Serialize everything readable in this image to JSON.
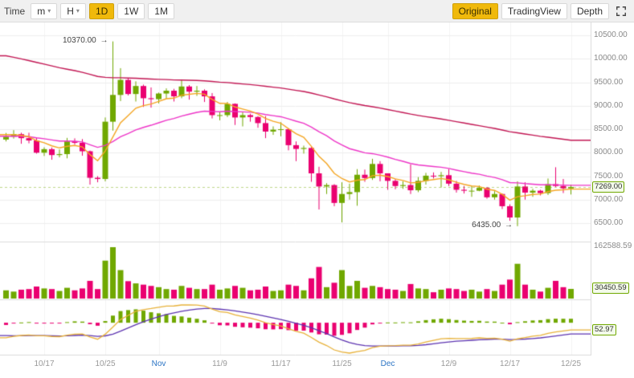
{
  "toolbar": {
    "time_label": "Time",
    "dropdowns": [
      {
        "label": "m"
      },
      {
        "label": "H"
      }
    ],
    "intervals": [
      {
        "label": "1D",
        "active": true
      },
      {
        "label": "1W",
        "active": false
      },
      {
        "label": "1M",
        "active": false
      }
    ],
    "modes": [
      {
        "label": "Original",
        "active": true
      },
      {
        "label": "TradingView",
        "active": false
      },
      {
        "label": "Depth",
        "active": false
      }
    ]
  },
  "colors": {
    "up": "#70a800",
    "down": "#ea0070",
    "ma_fast": "#f5a623",
    "ma_mid": "#ee36c8",
    "ma_slow": "#c21653",
    "macd_dif": "#e8b23a",
    "macd_dea": "#5e35b1",
    "accent": "#f0b90b",
    "month_label": "#2b74c4",
    "badge_border": "#70a800",
    "grid": "#eeeeee"
  },
  "chart_data": {
    "type": "candlestick",
    "panes": [
      "price",
      "volume",
      "macd"
    ],
    "price_axis_ticks": [
      {
        "label": "10500.00",
        "value": 10500
      },
      {
        "label": "10000.00",
        "value": 10000
      },
      {
        "label": "9500.00",
        "value": 9500
      },
      {
        "label": "9000.00",
        "value": 9000
      },
      {
        "label": "8500.00",
        "value": 8500
      },
      {
        "label": "8000.00",
        "value": 8000
      },
      {
        "label": "7500.00",
        "value": 7500
      },
      {
        "label": "7000.00",
        "value": 7000
      },
      {
        "label": "6500.00",
        "value": 6500
      }
    ],
    "x_tick_labels": [
      {
        "label": "10/17",
        "index": 5,
        "highlight": false
      },
      {
        "label": "10/25",
        "index": 13,
        "highlight": false
      },
      {
        "label": "Nov",
        "index": 20,
        "highlight": true
      },
      {
        "label": "11/9",
        "index": 28,
        "highlight": false
      },
      {
        "label": "11/17",
        "index": 36,
        "highlight": false
      },
      {
        "label": "11/25",
        "index": 44,
        "highlight": false
      },
      {
        "label": "Dec",
        "index": 50,
        "highlight": true
      },
      {
        "label": "12/9",
        "index": 58,
        "highlight": false
      },
      {
        "label": "12/17",
        "index": 66,
        "highlight": false
      },
      {
        "label": "12/25",
        "index": 74,
        "highlight": false
      }
    ],
    "annotations": [
      {
        "text": "10370.00",
        "price": 10370,
        "candle_index": 14
      },
      {
        "text": "6435.00",
        "price": 6435,
        "candle_index": 67
      }
    ],
    "badges": {
      "last_price": "7269.00",
      "volume_scale_max": "162588.59",
      "last_volume": "30450.59",
      "macd_value": "52.97"
    },
    "moving_averages": [
      {
        "period": 99,
        "seed": 10100,
        "color_key": "ma_slow"
      },
      {
        "period": 25,
        "seed": 8350,
        "color_key": "ma_mid"
      },
      {
        "period": 7,
        "seed": 8400,
        "color_key": "ma_fast"
      }
    ],
    "macd": {
      "fast": 12,
      "slow": 26,
      "signal": 9,
      "ema_fast_seed": 8320,
      "ema_slow_seed": 8560,
      "signal_seed": -180
    },
    "candles": [
      [
        8280,
        8420,
        8240,
        8340,
        26000
      ],
      [
        8340,
        8480,
        8300,
        8395,
        22000
      ],
      [
        8395,
        8425,
        8190,
        8310,
        28000
      ],
      [
        8310,
        8425,
        8200,
        8260,
        30000
      ],
      [
        8260,
        8320,
        7980,
        8000,
        38000
      ],
      [
        8000,
        8115,
        7930,
        8075,
        32000
      ],
      [
        8075,
        8110,
        7850,
        7950,
        30000
      ],
      [
        7950,
        8070,
        7900,
        7970,
        24000
      ],
      [
        7970,
        8315,
        7880,
        8240,
        34000
      ],
      [
        8240,
        8305,
        8170,
        8210,
        26000
      ],
      [
        8210,
        8290,
        7935,
        8030,
        32000
      ],
      [
        8030,
        8045,
        7320,
        7465,
        56000
      ],
      [
        7465,
        7500,
        7370,
        7440,
        30000
      ],
      [
        7440,
        8750,
        7390,
        8660,
        120000
      ],
      [
        8660,
        10370,
        8470,
        9230,
        162588.59
      ],
      [
        9230,
        9800,
        9100,
        9550,
        90000
      ],
      [
        9550,
        9590,
        9220,
        9250,
        55000
      ],
      [
        9250,
        9520,
        9090,
        9420,
        48000
      ],
      [
        9420,
        9450,
        8975,
        9160,
        44000
      ],
      [
        9160,
        9390,
        8960,
        9140,
        40000
      ],
      [
        9140,
        9280,
        9050,
        9260,
        36000
      ],
      [
        9260,
        9370,
        9150,
        9320,
        30000
      ],
      [
        9320,
        9360,
        9090,
        9200,
        28000
      ],
      [
        9200,
        9560,
        9160,
        9410,
        40000
      ],
      [
        9410,
        9440,
        9130,
        9300,
        34000
      ],
      [
        9300,
        9420,
        9210,
        9320,
        30000
      ],
      [
        9320,
        9350,
        9080,
        9200,
        30000
      ],
      [
        9200,
        9270,
        8730,
        8800,
        44000
      ],
      [
        8800,
        8860,
        8690,
        8800,
        28000
      ],
      [
        8800,
        9080,
        8760,
        9040,
        32000
      ],
      [
        9040,
        9050,
        8590,
        8750,
        40000
      ],
      [
        8750,
        8860,
        8560,
        8800,
        34000
      ],
      [
        8800,
        8830,
        8660,
        8760,
        26000
      ],
      [
        8760,
        8780,
        8530,
        8630,
        28000
      ],
      [
        8630,
        8780,
        8310,
        8450,
        38000
      ],
      [
        8450,
        8560,
        8380,
        8490,
        24000
      ],
      [
        8490,
        8650,
        8350,
        8500,
        26000
      ],
      [
        8500,
        8520,
        8050,
        8160,
        44000
      ],
      [
        8160,
        8240,
        7820,
        8080,
        40000
      ],
      [
        8080,
        8150,
        7980,
        8100,
        26000
      ],
      [
        8100,
        8120,
        7380,
        7560,
        64000
      ],
      [
        7560,
        7700,
        6790,
        7280,
        100000
      ],
      [
        7280,
        7350,
        7120,
        7310,
        36000
      ],
      [
        7310,
        7330,
        6860,
        6930,
        50000
      ],
      [
        6930,
        7370,
        6515,
        7120,
        90000
      ],
      [
        7120,
        7340,
        7000,
        7160,
        40000
      ],
      [
        7160,
        7650,
        6870,
        7530,
        56000
      ],
      [
        7530,
        7640,
        7380,
        7460,
        34000
      ],
      [
        7460,
        7870,
        7420,
        7760,
        40000
      ],
      [
        7760,
        7820,
        7390,
        7560,
        36000
      ],
      [
        7560,
        7560,
        7210,
        7400,
        30000
      ],
      [
        7400,
        7440,
        7220,
        7290,
        28000
      ],
      [
        7290,
        7390,
        7230,
        7310,
        24000
      ],
      [
        7310,
        7750,
        7120,
        7200,
        46000
      ],
      [
        7200,
        7480,
        7160,
        7400,
        32000
      ],
      [
        7400,
        7570,
        7320,
        7510,
        30000
      ],
      [
        7510,
        7580,
        7450,
        7500,
        20000
      ],
      [
        7500,
        7590,
        7260,
        7520,
        28000
      ],
      [
        7520,
        7650,
        7290,
        7340,
        32000
      ],
      [
        7340,
        7400,
        7150,
        7210,
        30000
      ],
      [
        7210,
        7290,
        7130,
        7190,
        24000
      ],
      [
        7190,
        7290,
        7060,
        7190,
        28000
      ],
      [
        7190,
        7300,
        7180,
        7250,
        22000
      ],
      [
        7250,
        7270,
        7020,
        7050,
        30000
      ],
      [
        7050,
        7180,
        7000,
        7120,
        24000
      ],
      [
        7120,
        7130,
        6800,
        6860,
        44000
      ],
      [
        6860,
        6900,
        6550,
        6620,
        60000
      ],
      [
        6620,
        7390,
        6435,
        7280,
        110000
      ],
      [
        7280,
        7370,
        7000,
        7150,
        44000
      ],
      [
        7150,
        7230,
        7060,
        7190,
        28000
      ],
      [
        7190,
        7210,
        7090,
        7140,
        22000
      ],
      [
        7140,
        7450,
        7100,
        7330,
        34000
      ],
      [
        7330,
        7690,
        7270,
        7290,
        56000
      ],
      [
        7290,
        7440,
        7140,
        7240,
        36000
      ],
      [
        7240,
        7320,
        7110,
        7269,
        30450.59
      ]
    ]
  }
}
